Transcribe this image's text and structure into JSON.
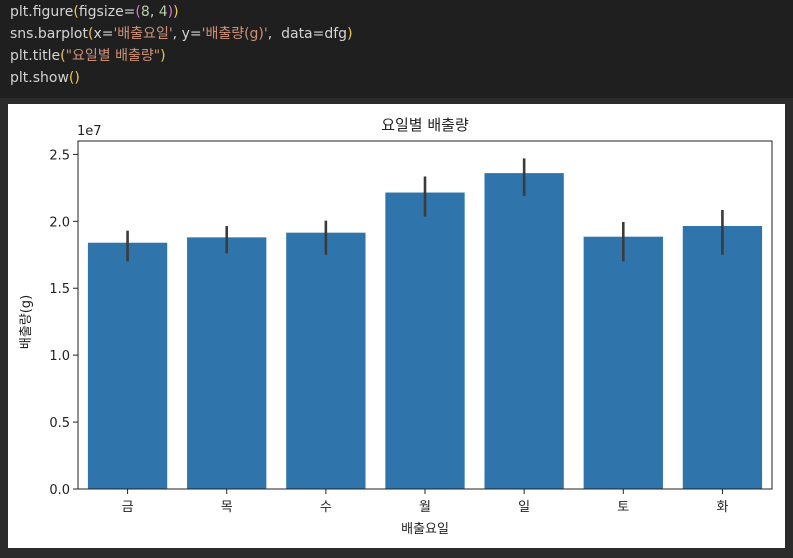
{
  "code": {
    "line1": [
      "plt.figure",
      "(",
      "figsize=",
      "(",
      "8",
      ", ",
      "4",
      ")",
      ")"
    ],
    "line2": [
      "sns.barplot",
      "(",
      "x=",
      "'배출요일'",
      ", y=",
      "'배출량(g)'",
      ",  data=dfg",
      ")"
    ],
    "line3": [
      "plt.title",
      "(",
      "\"요일별 배출량\"",
      ")"
    ],
    "line4": [
      "plt.show",
      "()"
    ]
  },
  "colors": {
    "bar": "#2f74aa",
    "errorbar": "#3b3b3b"
  },
  "chart_data": {
    "type": "bar",
    "title": "요일별 배출량",
    "xlabel": "배출요일",
    "ylabel": "배출량(g)",
    "y_offset_text": "1e7",
    "ylim": [
      0,
      26000000
    ],
    "yticks": [
      0,
      5000000,
      10000000,
      15000000,
      20000000,
      25000000
    ],
    "ytick_labels": [
      "0.0",
      "0.5",
      "1.0",
      "1.5",
      "2.0",
      "2.5"
    ],
    "categories": [
      "금",
      "목",
      "수",
      "월",
      "일",
      "토",
      "화"
    ],
    "values": [
      18400000,
      18800000,
      19150000,
      22150000,
      23600000,
      18850000,
      19650000
    ],
    "error_low": [
      17000000,
      17600000,
      17500000,
      20350000,
      21900000,
      17000000,
      17500000
    ],
    "error_high": [
      19300000,
      19650000,
      20050000,
      23350000,
      24700000,
      19950000,
      20850000
    ],
    "grid": false,
    "legend": "none"
  }
}
